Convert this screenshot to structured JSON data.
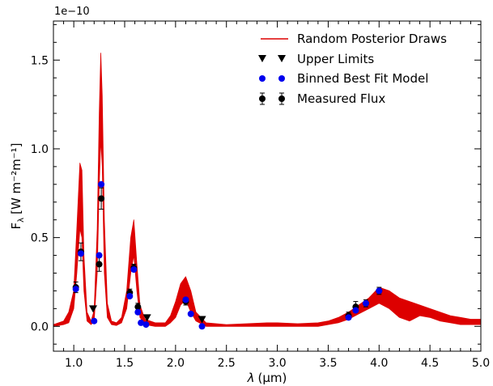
{
  "chart_data": {
    "type": "scatter",
    "title": "",
    "xlabel_symbol": "λ",
    "xlabel_unit": "(μm)",
    "ylabel_main": "F",
    "ylabel_sub": "λ",
    "ylabel_unit": "[W m⁻²m⁻¹]",
    "y_offset_label": "1e−10",
    "xlim": [
      0.8,
      5.0
    ],
    "ylim": [
      -0.14,
      1.72
    ],
    "x_ticks": [
      1.0,
      1.5,
      2.0,
      2.5,
      3.0,
      3.5,
      4.0,
      4.5,
      5.0
    ],
    "x_tick_labels": [
      "1.0",
      "1.5",
      "2.0",
      "2.5",
      "3.0",
      "3.5",
      "4.0",
      "4.5",
      "5.0"
    ],
    "y_ticks": [
      0.0,
      0.5,
      1.0,
      1.5
    ],
    "y_tick_labels": [
      "0.0",
      "0.5",
      "1.0",
      "1.5"
    ],
    "legend_position": "top-right",
    "legend": [
      {
        "key": "posterior",
        "label": "Random Posterior Draws"
      },
      {
        "key": "upper",
        "label": "Upper Limits"
      },
      {
        "key": "binned",
        "label": "Binned Best Fit Model"
      },
      {
        "key": "measured",
        "label": "Measured Flux"
      }
    ],
    "colors": {
      "posterior": "#dd0000",
      "upper": "#000000",
      "binned": "#0000ee",
      "measured": "#000000"
    },
    "posterior_band": [
      [
        0.8,
        0.0,
        0.01
      ],
      [
        0.9,
        0.01,
        0.03
      ],
      [
        0.95,
        0.02,
        0.08
      ],
      [
        1.0,
        0.1,
        0.2
      ],
      [
        1.03,
        0.3,
        0.55
      ],
      [
        1.06,
        0.55,
        0.92
      ],
      [
        1.08,
        0.5,
        0.88
      ],
      [
        1.1,
        0.2,
        0.4
      ],
      [
        1.13,
        0.03,
        0.08
      ],
      [
        1.17,
        0.01,
        0.03
      ],
      [
        1.2,
        0.03,
        0.09
      ],
      [
        1.23,
        0.3,
        0.55
      ],
      [
        1.25,
        0.8,
        1.2
      ],
      [
        1.265,
        1.05,
        1.54
      ],
      [
        1.28,
        0.9,
        1.3
      ],
      [
        1.3,
        0.3,
        0.6
      ],
      [
        1.33,
        0.05,
        0.13
      ],
      [
        1.37,
        0.01,
        0.03
      ],
      [
        1.42,
        0.005,
        0.02
      ],
      [
        1.47,
        0.02,
        0.05
      ],
      [
        1.52,
        0.1,
        0.2
      ],
      [
        1.56,
        0.3,
        0.5
      ],
      [
        1.59,
        0.4,
        0.6
      ],
      [
        1.62,
        0.2,
        0.35
      ],
      [
        1.65,
        0.05,
        0.12
      ],
      [
        1.7,
        0.01,
        0.04
      ],
      [
        1.8,
        0.0,
        0.02
      ],
      [
        1.9,
        0.0,
        0.02
      ],
      [
        1.95,
        0.02,
        0.06
      ],
      [
        2.0,
        0.05,
        0.14
      ],
      [
        2.05,
        0.12,
        0.24
      ],
      [
        2.1,
        0.15,
        0.28
      ],
      [
        2.15,
        0.08,
        0.2
      ],
      [
        2.2,
        0.03,
        0.08
      ],
      [
        2.3,
        0.0,
        0.02
      ],
      [
        2.5,
        0.0,
        0.01
      ],
      [
        2.7,
        0.0,
        0.015
      ],
      [
        2.9,
        0.0,
        0.02
      ],
      [
        3.0,
        0.0,
        0.02
      ],
      [
        3.2,
        0.0,
        0.015
      ],
      [
        3.4,
        0.0,
        0.02
      ],
      [
        3.5,
        0.01,
        0.03
      ],
      [
        3.6,
        0.02,
        0.05
      ],
      [
        3.7,
        0.04,
        0.08
      ],
      [
        3.8,
        0.07,
        0.12
      ],
      [
        3.9,
        0.1,
        0.16
      ],
      [
        4.0,
        0.13,
        0.22
      ],
      [
        4.1,
        0.1,
        0.2
      ],
      [
        4.2,
        0.05,
        0.16
      ],
      [
        4.3,
        0.03,
        0.14
      ],
      [
        4.4,
        0.06,
        0.12
      ],
      [
        4.5,
        0.05,
        0.1
      ],
      [
        4.6,
        0.03,
        0.08
      ],
      [
        4.7,
        0.02,
        0.06
      ],
      [
        4.8,
        0.01,
        0.05
      ],
      [
        4.9,
        0.01,
        0.04
      ],
      [
        5.0,
        0.01,
        0.04
      ]
    ],
    "binned_model": [
      {
        "x": 1.02,
        "y": 0.21
      },
      {
        "x": 1.07,
        "y": 0.41
      },
      {
        "x": 1.2,
        "y": 0.03
      },
      {
        "x": 1.25,
        "y": 0.4
      },
      {
        "x": 1.27,
        "y": 0.8
      },
      {
        "x": 1.55,
        "y": 0.17
      },
      {
        "x": 1.59,
        "y": 0.32
      },
      {
        "x": 1.63,
        "y": 0.08
      },
      {
        "x": 1.66,
        "y": 0.02
      },
      {
        "x": 1.71,
        "y": 0.01
      },
      {
        "x": 2.1,
        "y": 0.15
      },
      {
        "x": 2.15,
        "y": 0.07
      },
      {
        "x": 2.26,
        "y": 0.0
      },
      {
        "x": 3.7,
        "y": 0.05
      },
      {
        "x": 3.77,
        "y": 0.09
      },
      {
        "x": 3.87,
        "y": 0.13
      },
      {
        "x": 4.0,
        "y": 0.2
      }
    ],
    "measured_flux": [
      {
        "x": 1.02,
        "y": 0.22,
        "err": 0.03
      },
      {
        "x": 1.07,
        "y": 0.42,
        "err": 0.05
      },
      {
        "x": 1.25,
        "y": 0.35,
        "err": 0.04
      },
      {
        "x": 1.27,
        "y": 0.72,
        "err": 0.06
      },
      {
        "x": 1.55,
        "y": 0.19,
        "err": 0.02
      },
      {
        "x": 1.59,
        "y": 0.33,
        "err": 0.02
      },
      {
        "x": 1.63,
        "y": 0.11,
        "err": 0.02
      },
      {
        "x": 2.1,
        "y": 0.14,
        "err": 0.02
      },
      {
        "x": 3.7,
        "y": 0.06,
        "err": 0.02
      },
      {
        "x": 3.77,
        "y": 0.11,
        "err": 0.03
      },
      {
        "x": 3.87,
        "y": 0.13,
        "err": 0.02
      },
      {
        "x": 4.0,
        "y": 0.2,
        "err": 0.02
      }
    ],
    "upper_limits": [
      {
        "x": 1.19,
        "y": 0.1
      },
      {
        "x": 1.72,
        "y": 0.05
      },
      {
        "x": 2.26,
        "y": 0.04
      }
    ]
  }
}
